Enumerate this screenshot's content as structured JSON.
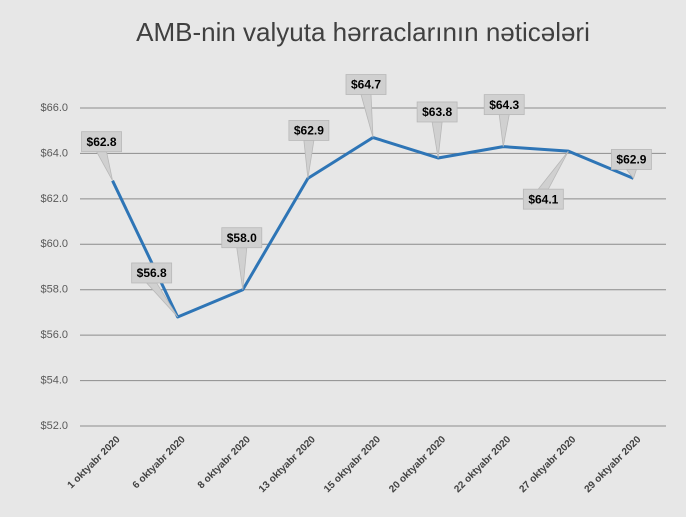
{
  "chart_data": {
    "type": "line",
    "title": "AMB-nin valyuta hərraclarının nəticələri",
    "categories": [
      "1 oktyabr 2020",
      "6 oktyabr 2020",
      "8 oktyabr 2020",
      "13 oktyabr 2020",
      "15 oktyabr 2020",
      "20 oktyabr 2020",
      "22 oktyabr 2020",
      "27 oktyabr 2020",
      "29 oktyabr 2020"
    ],
    "values": [
      62.8,
      56.8,
      58.0,
      62.9,
      64.7,
      63.8,
      64.3,
      64.1,
      62.9
    ],
    "value_labels": [
      "$62.8",
      "$56.8",
      "$58.0",
      "$62.9",
      "$64.7",
      "$63.8",
      "$64.3",
      "$64.1",
      "$62.9"
    ],
    "color": "#2e75b6",
    "ylim": [
      52,
      66
    ],
    "yticks": [
      {
        "value": 52,
        "label": "$52.0"
      },
      {
        "value": 54,
        "label": "$54.0"
      },
      {
        "value": 56,
        "label": "$56.0"
      },
      {
        "value": 58,
        "label": "$58.0"
      },
      {
        "value": 60,
        "label": "$60.0"
      },
      {
        "value": 62,
        "label": "$62.0"
      },
      {
        "value": 64,
        "label": "$64.0"
      },
      {
        "value": 66,
        "label": "$66.0"
      }
    ],
    "grid": true
  }
}
